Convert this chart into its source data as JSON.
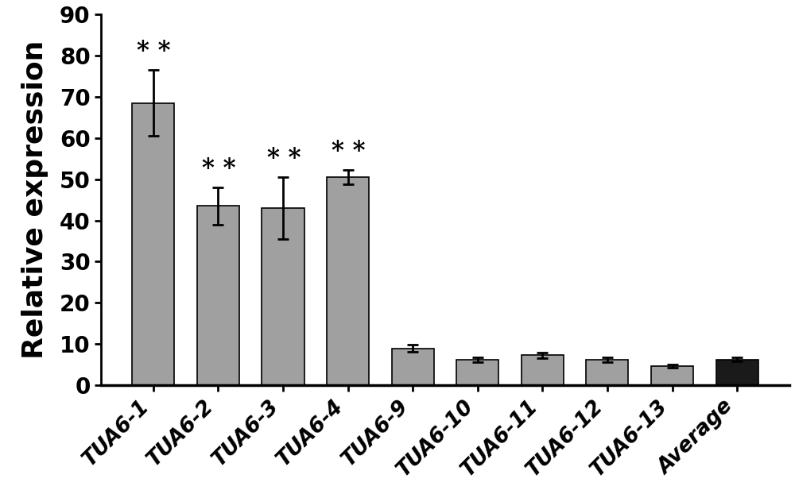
{
  "categories": [
    "TUA6-1",
    "TUA6-2",
    "TUA6-3",
    "TUA6-4",
    "TUA6-9",
    "TUA6-10",
    "TUA6-11",
    "TUA6-12",
    "TUA6-13",
    "Average"
  ],
  "values": [
    68.5,
    43.5,
    43.0,
    50.5,
    9.0,
    6.2,
    7.3,
    6.2,
    4.7,
    6.3
  ],
  "errors": [
    8.0,
    4.5,
    7.5,
    1.8,
    0.9,
    0.5,
    0.7,
    0.5,
    0.4,
    0.5
  ],
  "bar_colors": [
    "#a0a0a0",
    "#a0a0a0",
    "#a0a0a0",
    "#a0a0a0",
    "#a0a0a0",
    "#a0a0a0",
    "#a0a0a0",
    "#a0a0a0",
    "#a0a0a0",
    "#1a1a1a"
  ],
  "significance": [
    true,
    true,
    true,
    true,
    false,
    false,
    false,
    false,
    false,
    false
  ],
  "ylabel": "Relative expression",
  "ylim": [
    0,
    90
  ],
  "yticks": [
    0,
    10,
    20,
    30,
    40,
    50,
    60,
    70,
    80,
    90
  ],
  "ylabel_fontsize": 26,
  "tick_fontsize": 20,
  "xlabel_fontsize": 19,
  "sig_fontsize": 22,
  "background_color": "#ffffff"
}
